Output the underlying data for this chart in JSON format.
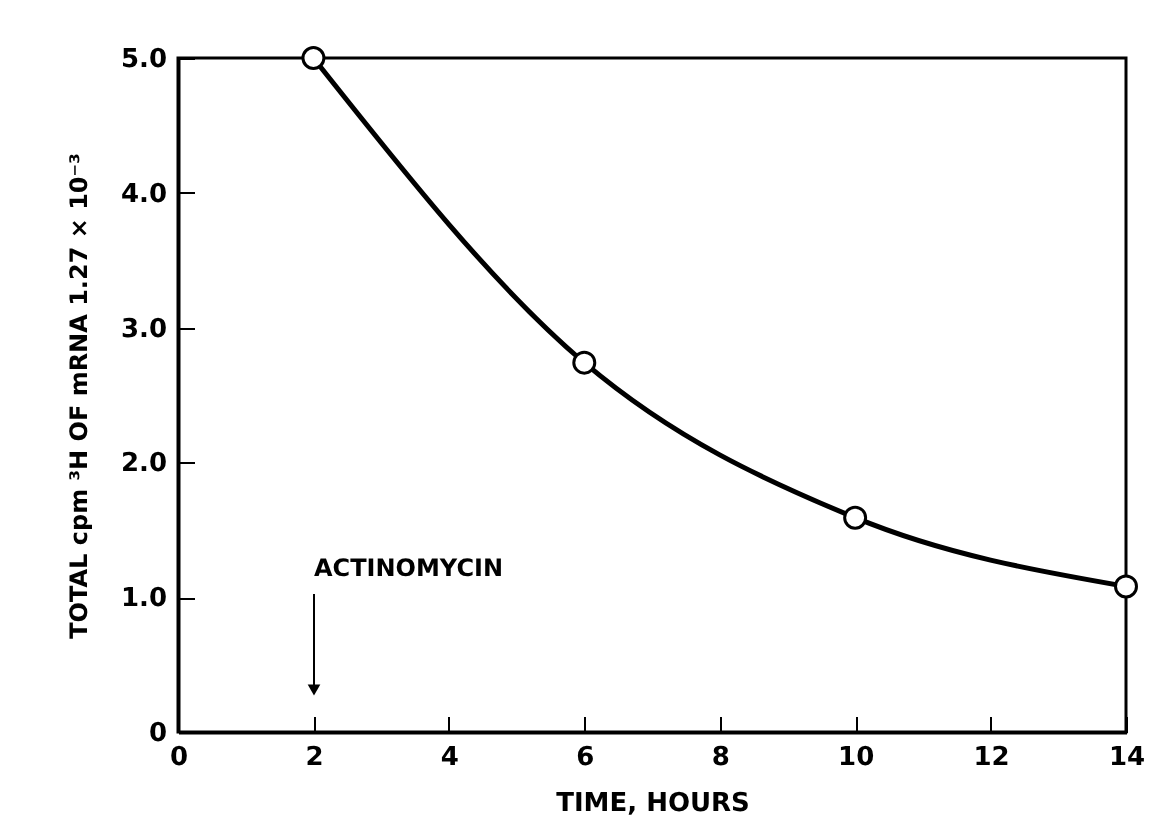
{
  "chart_data": {
    "type": "line",
    "xlabel": "TIME, HOURS",
    "ylabel": "TOTAL cpm ³H OF mRNA 1.27 × 10⁻³",
    "x": [
      2,
      6,
      10,
      14
    ],
    "series": [
      {
        "color": "#000000",
        "values": [
          5.0,
          2.74,
          1.59,
          1.08
        ]
      }
    ],
    "xlim": [
      0,
      14
    ],
    "xticks": [
      0,
      2,
      4,
      6,
      8,
      10,
      12,
      14
    ],
    "ylim": [
      0,
      5
    ],
    "yticks": [
      {
        "value": 0,
        "label": "0"
      },
      {
        "value": 1,
        "label": "1.0"
      },
      {
        "value": 2,
        "label": "2.0"
      },
      {
        "value": 3,
        "label": "3.0"
      },
      {
        "value": 4,
        "label": "4.0"
      },
      {
        "value": 5,
        "label": "5.0"
      }
    ],
    "marker": "circle",
    "line_style": "solid",
    "grid": false,
    "annotations": [
      "ACTINOMYCIN"
    ]
  }
}
